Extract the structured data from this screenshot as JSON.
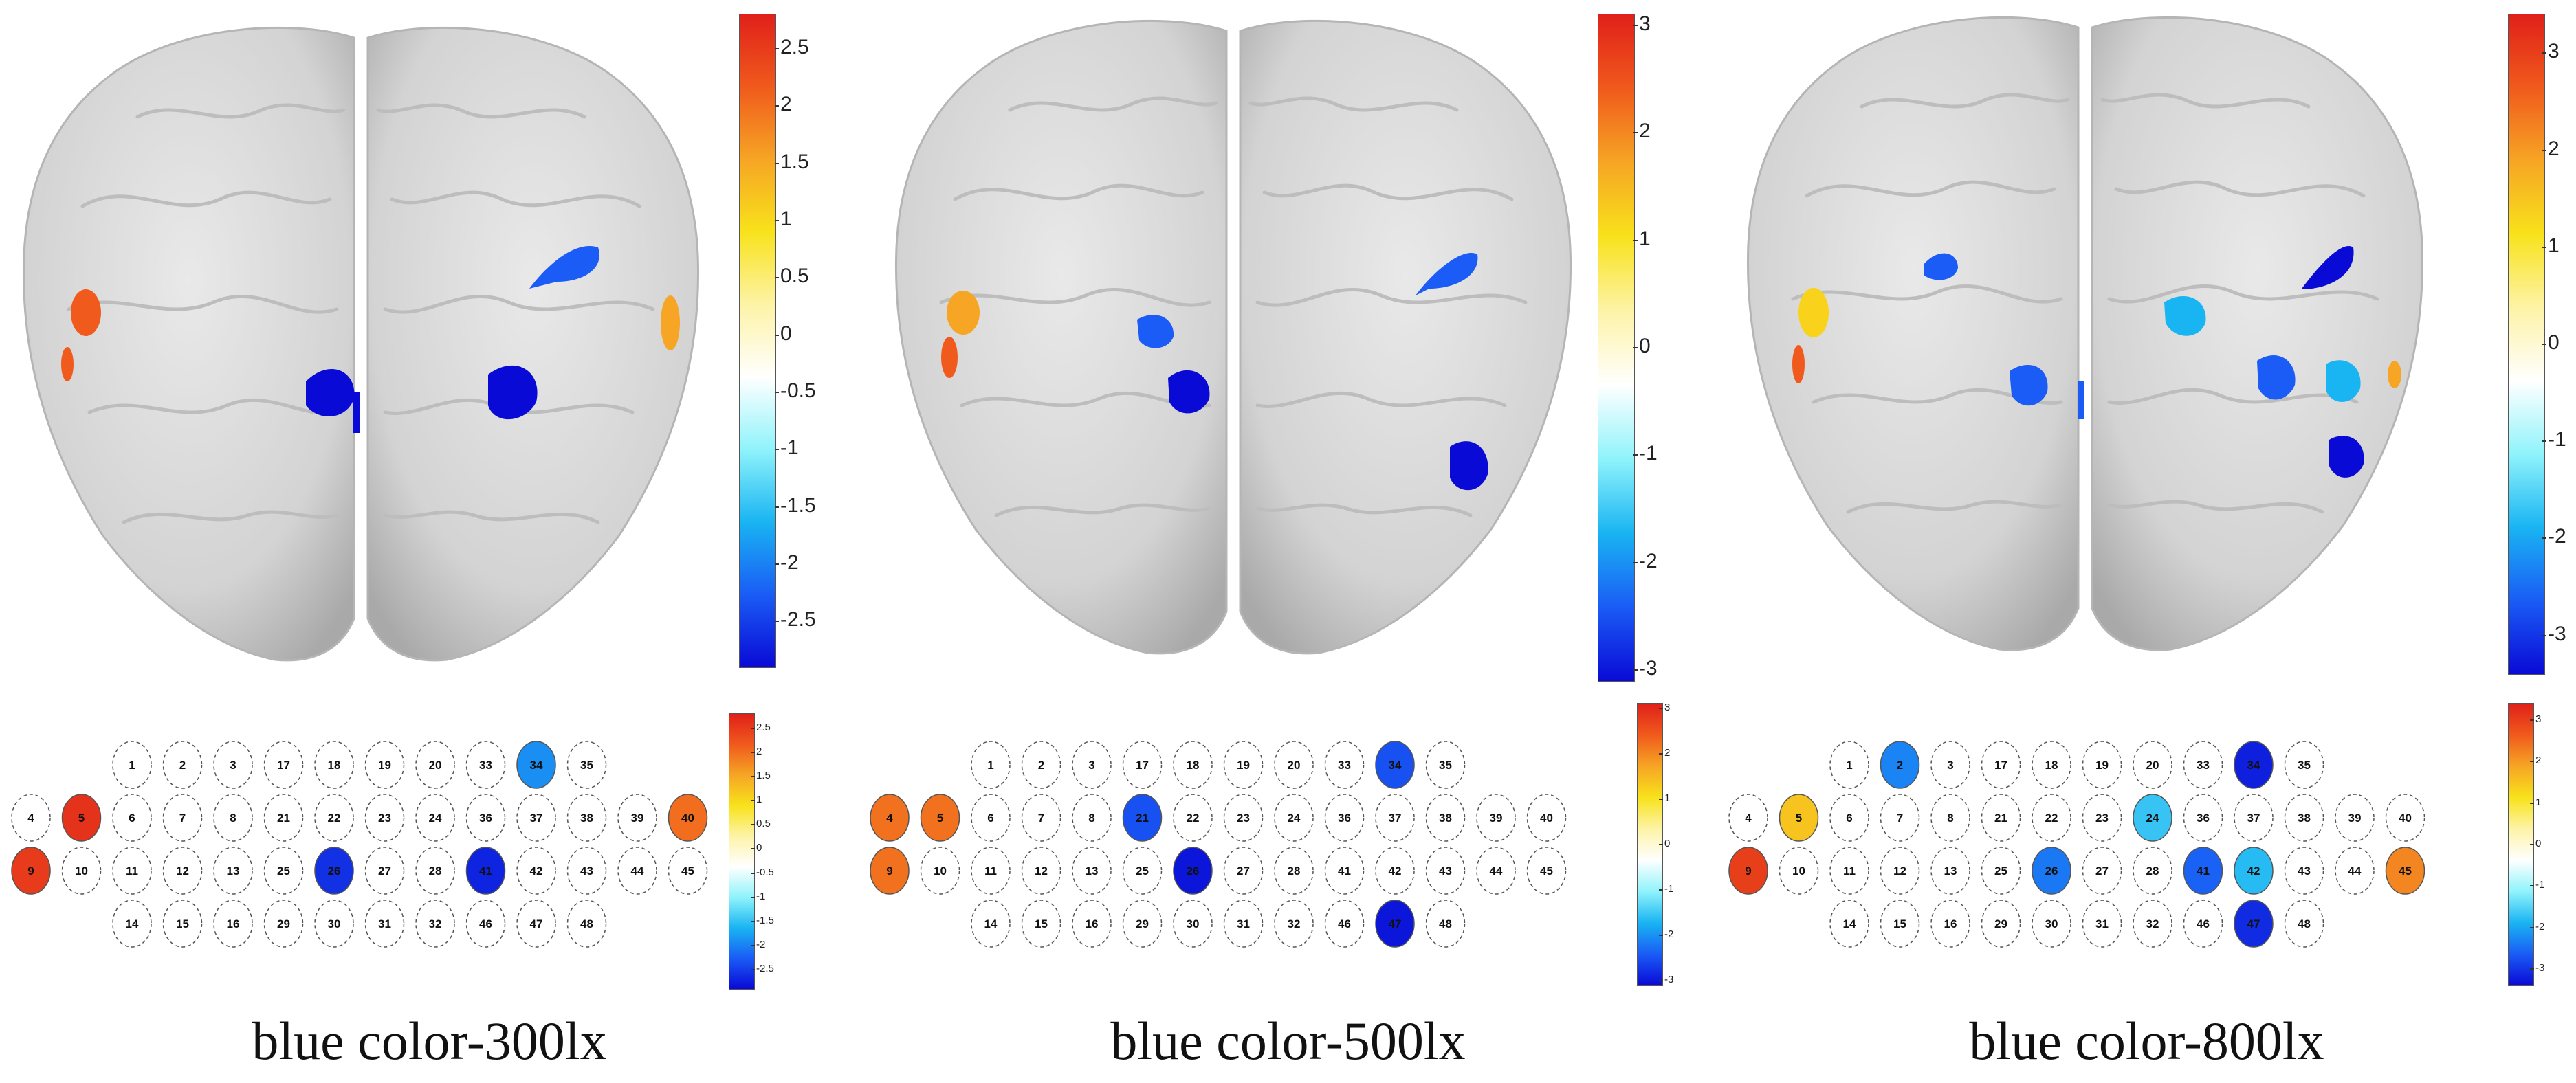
{
  "colors": {
    "scale": [
      "#0a0ad6",
      "#1a5cf5",
      "#19b4f2",
      "#8ff3fb",
      "#ffffff",
      "#fdf3a6",
      "#f8e21b",
      "#f6a524",
      "#f05a1c",
      "#e0201a"
    ]
  },
  "electrode_grid": [
    [
      "1",
      "2",
      "3",
      "17",
      "18",
      "19",
      "20",
      "33",
      "34",
      "35"
    ],
    [
      "4",
      "5",
      "6",
      "7",
      "8",
      "21",
      "22",
      "23",
      "24",
      "36",
      "37",
      "38",
      "39",
      "40"
    ],
    [
      "9",
      "10",
      "11",
      "12",
      "13",
      "25",
      "26",
      "27",
      "28",
      "41",
      "42",
      "43",
      "44",
      "45"
    ],
    [
      "14",
      "15",
      "16",
      "29",
      "30",
      "31",
      "32",
      "46",
      "47",
      "48"
    ]
  ],
  "panels": [
    {
      "caption": "blue color-300lx",
      "colorbar": {
        "range": [
          -2.9,
          2.8
        ],
        "ticks": [
          "2.5",
          "2",
          "1.5",
          "1",
          "0.5",
          "0",
          "-0.5",
          "-1",
          "-1.5",
          "-2",
          "-2.5"
        ],
        "tick_values": [
          2.5,
          2,
          1.5,
          1,
          0.5,
          0,
          -0.5,
          -1,
          -1.5,
          -2,
          -2.5
        ]
      },
      "mini_colorbar": {
        "range": [
          -2.9,
          2.8
        ],
        "ticks": [
          "2.5",
          "2",
          "1.5",
          "1",
          "0.5",
          "0",
          "-0.5",
          "-1",
          "-1.5",
          "-2",
          "-2.5"
        ],
        "tick_values": [
          2.5,
          2,
          1.5,
          1,
          0.5,
          0,
          -0.5,
          -1,
          -1.5,
          -2,
          -2.5
        ]
      },
      "active_electrodes": [
        {
          "id": "5",
          "value": 2.6
        },
        {
          "id": "9",
          "value": 2.5
        },
        {
          "id": "40",
          "value": 2.0
        },
        {
          "id": "34",
          "value": -1.9
        },
        {
          "id": "26",
          "value": -2.6
        },
        {
          "id": "41",
          "value": -2.7
        }
      ]
    },
    {
      "caption": "blue color-500lx",
      "colorbar": {
        "range": [
          -3.1,
          3.1
        ],
        "ticks": [
          "3",
          "2",
          "1",
          "0",
          "-1",
          "-2",
          "-3"
        ],
        "tick_values": [
          3,
          2,
          1,
          0,
          -1,
          -2,
          -3
        ]
      },
      "mini_colorbar": {
        "range": [
          -3.1,
          3.1
        ],
        "ticks": [
          "3",
          "2",
          "1",
          "0",
          "-1",
          "-2",
          "-3"
        ],
        "tick_values": [
          3,
          2,
          1,
          0,
          -1,
          -2,
          -3
        ]
      },
      "active_electrodes": [
        {
          "id": "4",
          "value": 2.2
        },
        {
          "id": "5",
          "value": 2.2
        },
        {
          "id": "9",
          "value": 2.2
        },
        {
          "id": "34",
          "value": -2.5
        },
        {
          "id": "21",
          "value": -2.5
        },
        {
          "id": "26",
          "value": -3.0
        },
        {
          "id": "47",
          "value": -3.0
        }
      ]
    },
    {
      "caption": "blue color-800lx",
      "colorbar": {
        "range": [
          -3.4,
          3.4
        ],
        "ticks": [
          "3",
          "2",
          "1",
          "0",
          "-1",
          "-2",
          "-3"
        ],
        "tick_values": [
          3,
          2,
          1,
          0,
          -1,
          -2,
          -3
        ]
      },
      "mini_colorbar": {
        "range": [
          -3.4,
          3.4
        ],
        "ticks": [
          "3",
          "2",
          "1",
          "0",
          "-1",
          "-2",
          "-3"
        ],
        "tick_values": [
          3,
          2,
          1,
          0,
          -1,
          -2,
          -3
        ]
      },
      "active_electrodes": [
        {
          "id": "9",
          "value": 3.0
        },
        {
          "id": "5",
          "value": 1.5
        },
        {
          "id": "45",
          "value": 2.2
        },
        {
          "id": "2",
          "value": -2.3
        },
        {
          "id": "34",
          "value": -3.2
        },
        {
          "id": "24",
          "value": -1.7
        },
        {
          "id": "26",
          "value": -2.4
        },
        {
          "id": "41",
          "value": -2.6
        },
        {
          "id": "42",
          "value": -1.8
        },
        {
          "id": "47",
          "value": -3.1
        }
      ]
    }
  ]
}
